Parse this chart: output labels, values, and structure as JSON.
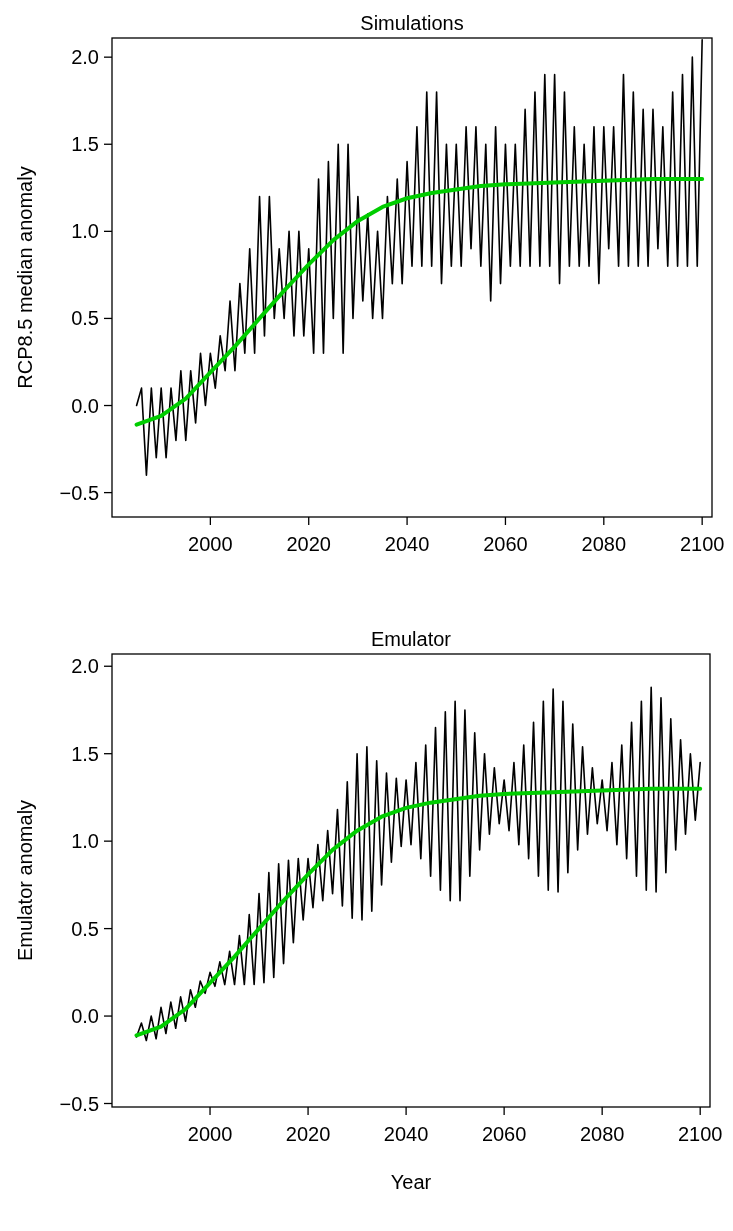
{
  "chart_data": [
    {
      "type": "line",
      "title": "Simulations",
      "ylabel": "RCP8.5 median anomaly",
      "xlim": [
        1980,
        2102
      ],
      "ylim": [
        -0.64,
        2.11
      ],
      "grid": false,
      "marker": "none",
      "line_style": "solid",
      "tick_labels": "xy",
      "xticks": [
        2000,
        2020,
        2040,
        2060,
        2080,
        2100
      ],
      "yticks": [
        {
          "value": -0.5,
          "label": "−0.5"
        },
        {
          "value": 0,
          "label": "0.0"
        },
        {
          "value": 0.5,
          "label": "0.5"
        },
        {
          "value": 1,
          "label": "1.0"
        },
        {
          "value": 1.5,
          "label": "1.5"
        },
        {
          "value": 2,
          "label": "2.0"
        }
      ],
      "series": [
        {
          "color": "#000000",
          "x": [
            1985,
            1986,
            1987,
            1988,
            1989,
            1990,
            1991,
            1992,
            1993,
            1994,
            1995,
            1996,
            1997,
            1998,
            1999,
            2000,
            2001,
            2002,
            2003,
            2004,
            2005,
            2006,
            2007,
            2008,
            2009,
            2010,
            2011,
            2012,
            2013,
            2014,
            2015,
            2016,
            2017,
            2018,
            2019,
            2020,
            2021,
            2022,
            2023,
            2024,
            2025,
            2026,
            2027,
            2028,
            2029,
            2030,
            2031,
            2032,
            2033,
            2034,
            2035,
            2036,
            2037,
            2038,
            2039,
            2040,
            2041,
            2042,
            2043,
            2044,
            2045,
            2046,
            2047,
            2048,
            2049,
            2050,
            2051,
            2052,
            2053,
            2054,
            2055,
            2056,
            2057,
            2058,
            2059,
            2060,
            2061,
            2062,
            2063,
            2064,
            2065,
            2066,
            2067,
            2068,
            2069,
            2070,
            2071,
            2072,
            2073,
            2074,
            2075,
            2076,
            2077,
            2078,
            2079,
            2080,
            2081,
            2082,
            2083,
            2084,
            2085,
            2086,
            2087,
            2088,
            2089,
            2090,
            2091,
            2092,
            2093,
            2094,
            2095,
            2096,
            2097,
            2098,
            2099,
            2100
          ],
          "values": [
            0.0,
            0.1,
            -0.4,
            0.1,
            -0.3,
            0.1,
            -0.3,
            0.1,
            -0.2,
            0.2,
            -0.2,
            0.2,
            -0.1,
            0.3,
            0.0,
            0.3,
            0.1,
            0.4,
            0.2,
            0.6,
            0.2,
            0.7,
            0.3,
            0.9,
            0.3,
            1.2,
            0.4,
            1.2,
            0.5,
            0.9,
            0.5,
            1.0,
            0.4,
            1.0,
            0.4,
            0.9,
            0.3,
            1.3,
            0.3,
            1.4,
            0.5,
            1.5,
            0.3,
            1.5,
            0.5,
            1.2,
            0.6,
            1.1,
            0.5,
            1.0,
            0.5,
            1.2,
            0.7,
            1.3,
            0.7,
            1.4,
            0.8,
            1.6,
            0.8,
            1.8,
            0.8,
            1.8,
            0.7,
            1.5,
            0.8,
            1.5,
            0.8,
            1.6,
            0.9,
            1.6,
            0.8,
            1.5,
            0.6,
            1.6,
            0.7,
            1.5,
            0.8,
            1.5,
            0.8,
            1.7,
            0.8,
            1.8,
            0.8,
            1.9,
            0.8,
            1.9,
            0.7,
            1.8,
            0.8,
            1.6,
            0.8,
            1.5,
            0.8,
            1.6,
            0.7,
            1.6,
            0.9,
            1.6,
            0.8,
            1.9,
            0.8,
            1.8,
            0.8,
            1.7,
            0.8,
            1.7,
            0.9,
            1.6,
            0.8,
            1.8,
            0.8,
            1.9,
            0.8,
            2.0,
            0.8,
            2.1
          ]
        },
        {
          "color": "#00cd00",
          "x": [
            1985,
            1990,
            1995,
            2000,
            2005,
            2010,
            2015,
            2020,
            2025,
            2030,
            2035,
            2040,
            2045,
            2050,
            2055,
            2060,
            2070,
            2080,
            2090,
            2100
          ],
          "values": [
            -0.11,
            -0.06,
            0.04,
            0.19,
            0.34,
            0.5,
            0.66,
            0.81,
            0.95,
            1.06,
            1.14,
            1.19,
            1.22,
            1.24,
            1.26,
            1.27,
            1.28,
            1.29,
            1.3,
            1.3
          ]
        }
      ]
    },
    {
      "type": "line",
      "title": "Emulator",
      "ylabel": "Emulator anomaly",
      "xlabel": "Year",
      "xlim": [
        1980,
        2102
      ],
      "ylim": [
        -0.52,
        2.07
      ],
      "grid": false,
      "marker": "none",
      "line_style": "solid",
      "xticks": [
        2000,
        2020,
        2040,
        2060,
        2080,
        2100
      ],
      "yticks": [
        {
          "value": -0.5,
          "label": "−0.5"
        },
        {
          "value": 0,
          "label": "0.0"
        },
        {
          "value": 0.5,
          "label": "0.5"
        },
        {
          "value": 1,
          "label": "1.0"
        },
        {
          "value": 1.5,
          "label": "1.5"
        },
        {
          "value": 2,
          "label": "2.0"
        }
      ],
      "series": [
        {
          "color": "#000000",
          "x": [
            1985,
            1986,
            1987,
            1988,
            1989,
            1990,
            1991,
            1992,
            1993,
            1994,
            1995,
            1996,
            1997,
            1998,
            1999,
            2000,
            2001,
            2002,
            2003,
            2004,
            2005,
            2006,
            2007,
            2008,
            2009,
            2010,
            2011,
            2012,
            2013,
            2014,
            2015,
            2016,
            2017,
            2018,
            2019,
            2020,
            2021,
            2022,
            2023,
            2024,
            2025,
            2026,
            2027,
            2028,
            2029,
            2030,
            2031,
            2032,
            2033,
            2034,
            2035,
            2036,
            2037,
            2038,
            2039,
            2040,
            2041,
            2042,
            2043,
            2044,
            2045,
            2046,
            2047,
            2048,
            2049,
            2050,
            2051,
            2052,
            2053,
            2054,
            2055,
            2056,
            2057,
            2058,
            2059,
            2060,
            2061,
            2062,
            2063,
            2064,
            2065,
            2066,
            2067,
            2068,
            2069,
            2070,
            2071,
            2072,
            2073,
            2074,
            2075,
            2076,
            2077,
            2078,
            2079,
            2080,
            2081,
            2082,
            2083,
            2084,
            2085,
            2086,
            2087,
            2088,
            2089,
            2090,
            2091,
            2092,
            2093,
            2094,
            2095,
            2096,
            2097,
            2098,
            2099,
            2100
          ],
          "values": [
            -0.12,
            -0.04,
            -0.14,
            0.0,
            -0.13,
            0.05,
            -0.1,
            0.08,
            -0.07,
            0.11,
            -0.03,
            0.15,
            0.05,
            0.2,
            0.13,
            0.25,
            0.17,
            0.31,
            0.18,
            0.37,
            0.18,
            0.46,
            0.18,
            0.58,
            0.18,
            0.7,
            0.19,
            0.82,
            0.22,
            0.87,
            0.3,
            0.89,
            0.42,
            0.9,
            0.55,
            0.9,
            0.62,
            0.98,
            0.66,
            1.06,
            0.7,
            1.18,
            0.63,
            1.34,
            0.56,
            1.5,
            0.55,
            1.54,
            0.6,
            1.46,
            0.75,
            1.39,
            0.88,
            1.36,
            0.97,
            1.35,
            0.98,
            1.45,
            0.9,
            1.55,
            0.8,
            1.65,
            0.72,
            1.74,
            0.66,
            1.8,
            0.66,
            1.75,
            0.8,
            1.62,
            0.95,
            1.5,
            1.04,
            1.42,
            1.1,
            1.35,
            1.06,
            1.45,
            0.98,
            1.55,
            0.9,
            1.68,
            0.8,
            1.8,
            0.72,
            1.87,
            0.71,
            1.8,
            0.82,
            1.67,
            0.95,
            1.54,
            1.04,
            1.42,
            1.1,
            1.35,
            1.06,
            1.45,
            0.98,
            1.55,
            0.9,
            1.68,
            0.8,
            1.8,
            0.72,
            1.88,
            0.71,
            1.82,
            0.82,
            1.7,
            0.95,
            1.58,
            1.04,
            1.5,
            1.12,
            1.45
          ]
        },
        {
          "color": "#00cd00",
          "x": [
            1985,
            1990,
            1995,
            2000,
            2005,
            2010,
            2015,
            2020,
            2025,
            2030,
            2035,
            2040,
            2045,
            2050,
            2055,
            2060,
            2070,
            2080,
            2090,
            2100
          ],
          "values": [
            -0.11,
            -0.06,
            0.04,
            0.19,
            0.34,
            0.5,
            0.66,
            0.81,
            0.95,
            1.06,
            1.14,
            1.19,
            1.22,
            1.24,
            1.26,
            1.27,
            1.28,
            1.29,
            1.3,
            1.3
          ]
        }
      ]
    }
  ]
}
